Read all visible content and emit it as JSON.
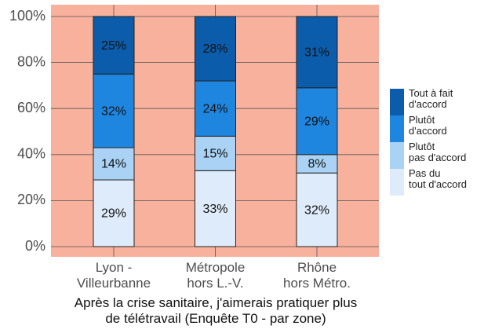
{
  "chart_data": {
    "type": "stacked_bar",
    "title": "Après la crise sanitaire, j'aimerais pratiquer plus\nde télétravail (Enquête T0 - par zone)",
    "categories": [
      "Lyon -\nVilleurbanne",
      "Métropole\nhors L.-V.",
      "Rhône\nhors Métro."
    ],
    "series": [
      {
        "name": "Pas du\ntout d'accord",
        "color": "#deebfa",
        "values": [
          29,
          33,
          32
        ],
        "value_labels": [
          "29%",
          "33%",
          "32%"
        ]
      },
      {
        "name": "Plutôt\npas d'accord",
        "color": "#a9d2f5",
        "values": [
          14,
          15,
          8
        ],
        "value_labels": [
          "14%",
          "15%",
          "8%"
        ]
      },
      {
        "name": "Plutôt\nd'accord",
        "color": "#1f86e0",
        "values": [
          32,
          24,
          29
        ],
        "value_labels": [
          "32%",
          "24%",
          "29%"
        ]
      },
      {
        "name": "Tout à fait\nd'accord",
        "color": "#0b5cab",
        "values": [
          25,
          28,
          31
        ],
        "value_labels": [
          "25%",
          "28%",
          "31%"
        ]
      }
    ],
    "ylim": [
      0,
      100
    ],
    "yticks": [
      {
        "value": 0,
        "label": "0%"
      },
      {
        "value": 20,
        "label": "20%"
      },
      {
        "value": 40,
        "label": "40%"
      },
      {
        "value": 60,
        "label": "60%"
      },
      {
        "value": 80,
        "label": "80%"
      },
      {
        "value": 100,
        "label": "100%"
      }
    ],
    "grid": true,
    "legend": "right",
    "background": "#f7b19c"
  }
}
